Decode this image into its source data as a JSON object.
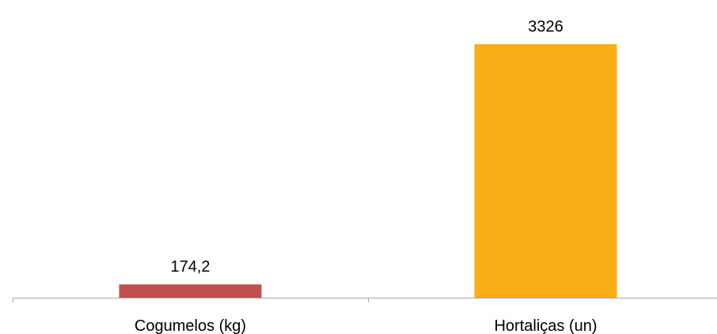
{
  "chart_data": {
    "type": "bar",
    "categories": [
      "Cogumelos (kg)",
      "Hortaliças (un)"
    ],
    "values": [
      174.2,
      3326
    ],
    "data_labels": [
      "174,2",
      "3326"
    ],
    "colors": [
      "#c0504d",
      "#f9ad17"
    ],
    "ylim": [
      0,
      3326
    ],
    "grid": false,
    "legend": "none",
    "axis_color": "#a6a6a6"
  }
}
